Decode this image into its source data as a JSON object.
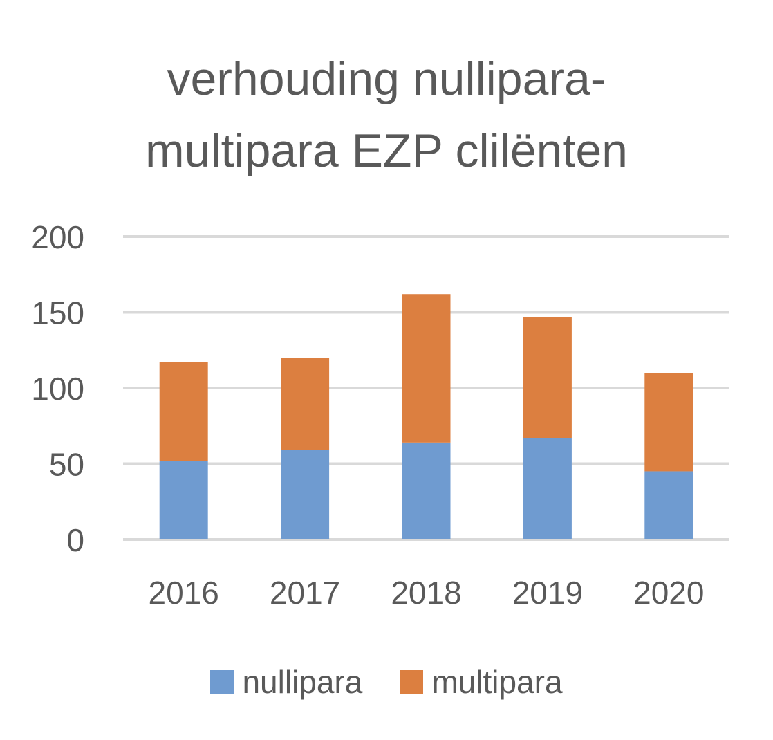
{
  "chart_data": {
    "type": "bar",
    "stacked": true,
    "title_lines": [
      "verhouding nullipara-",
      "multipara EZP clilënten"
    ],
    "categories": [
      "2016",
      "2017",
      "2018",
      "2019",
      "2020"
    ],
    "series": [
      {
        "name": "nullipara",
        "values": [
          52,
          59,
          64,
          67,
          45
        ],
        "color": "#6f9bd0"
      },
      {
        "name": "multipara",
        "values": [
          65,
          61,
          98,
          80,
          65
        ],
        "color": "#dc7f40"
      }
    ],
    "ylim": [
      0,
      200
    ],
    "yticks": [
      "0",
      "50",
      "100",
      "150",
      "200"
    ],
    "grid": true,
    "legend_position": "bottom"
  }
}
